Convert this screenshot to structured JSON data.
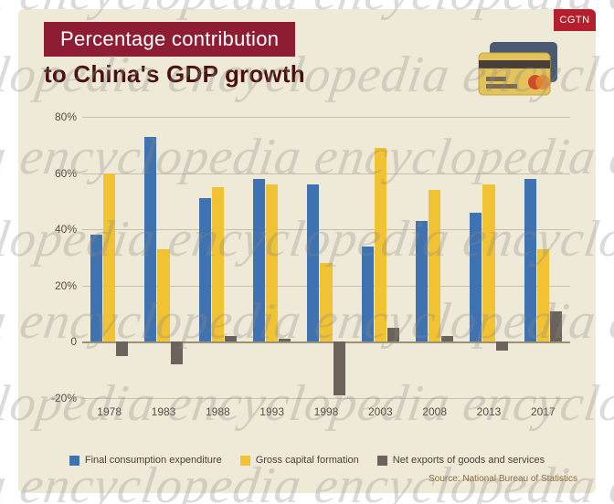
{
  "colors": {
    "beige": "#efe9d7",
    "title_bar": "#8e1d34",
    "subtitle": "#4a1010",
    "logo_bg": "#b31f2c",
    "axis_text": "#5a4a42",
    "grid": "#c9c0aa",
    "zero_line": "#9b9078",
    "legend_text": "#4a3f38",
    "source_text": "#8a6b3a",
    "watermark": "#8a8a8a",
    "card_front": "#e3c35a",
    "card_back": "#4b5a73"
  },
  "header": {
    "title": "Percentage contribution",
    "subtitle": "to China's GDP growth",
    "logo": "CGTN"
  },
  "chart": {
    "type": "bar",
    "ylim": [
      -20,
      80
    ],
    "yticks": [
      -20,
      0,
      20,
      40,
      60,
      80
    ],
    "ytick_labels": [
      "-20%",
      "0",
      "20%",
      "40%",
      "60%",
      "80%"
    ],
    "categories": [
      "1978",
      "1983",
      "1988",
      "1993",
      "1998",
      "2003",
      "2008",
      "2013",
      "2017"
    ],
    "series": [
      {
        "name": "Final consumption expenditure",
        "color": "#3f72b0",
        "values": [
          38,
          73,
          51,
          58,
          56,
          34,
          43,
          46,
          58
        ]
      },
      {
        "name": "Gross capital formation",
        "color": "#f1c232",
        "values": [
          60,
          33,
          55,
          56,
          28,
          69,
          54,
          56,
          33
        ]
      },
      {
        "name": "Net exports of goods and services",
        "color": "#6b625b",
        "values": [
          -5,
          -8,
          2,
          1,
          -19,
          5,
          2,
          -3,
          11
        ]
      }
    ],
    "label_fontsize": 12,
    "bar_group_width": 0.72,
    "bar_gap": 0.02
  },
  "source": "Source: National Bureau of Statistics",
  "watermark": "encyclopedia "
}
